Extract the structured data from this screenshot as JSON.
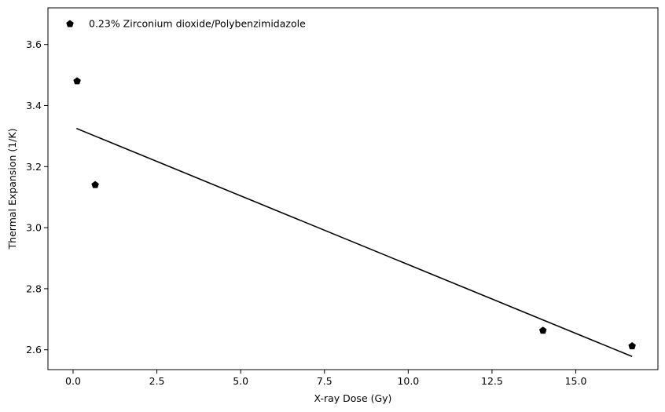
{
  "chart_data": {
    "type": "scatter",
    "xlabel": "X-ray Dose (Gy)",
    "ylabel": "Thermal Expansion (1/K)",
    "xlim": [
      -0.75,
      17.45
    ],
    "ylim": [
      2.535,
      3.72
    ],
    "xticks": [
      0.0,
      2.5,
      5.0,
      7.5,
      10.0,
      12.5,
      15.0
    ],
    "xtick_labels": [
      "0.0",
      "2.5",
      "5.0",
      "7.5",
      "10.0",
      "12.5",
      "15.0"
    ],
    "yticks": [
      2.6,
      2.8,
      3.0,
      3.2,
      3.4,
      3.6
    ],
    "ytick_labels": [
      "2.6",
      "2.8",
      "3.0",
      "3.2",
      "3.4",
      "3.6"
    ],
    "grid": false,
    "legend_position": "top-left",
    "series": [
      {
        "name": "0.23% Zirconium dioxide/Polybenzimidazole",
        "marker": "pentagon",
        "color": "#000000",
        "x": [
          0.12,
          0.66,
          14.02,
          16.68
        ],
        "y": [
          3.48,
          3.14,
          2.663,
          2.612
        ]
      }
    ],
    "fit_line": {
      "color": "#000000",
      "x": [
        0.1,
        16.68
      ],
      "y": [
        3.325,
        2.578
      ]
    }
  }
}
